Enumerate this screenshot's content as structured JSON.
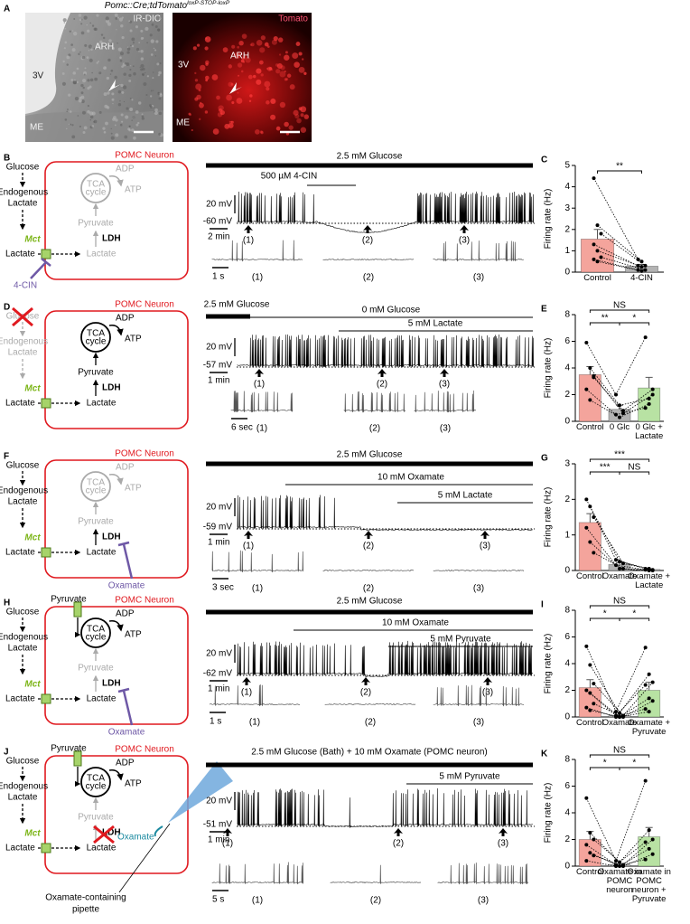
{
  "figure": {
    "panel_a": {
      "letter": "A",
      "genotype": "Pomc::Cre;tdTomato",
      "genotype_sup": "loxP-STOP-loxP",
      "left": {
        "channel": "IR-DIC",
        "regions": [
          "3V",
          "ARH",
          "ME"
        ]
      },
      "right": {
        "channel": "Tomato",
        "regions": [
          "3V",
          "ARH",
          "ME"
        ]
      }
    },
    "rows": [
      {
        "panel": "B",
        "diagram": {
          "neuron": "POMC Neuron",
          "glucose": "Glucose",
          "endogenous": "Endogenous",
          "lactate_mid": "Lactate",
          "lactate_out": "Lactate",
          "mct": "Mct",
          "tca": "TCA",
          "cycle": "cycle",
          "adp": "ADP",
          "atp": "ATP",
          "pyruvate": "Pyruvate",
          "ldh": "LDH",
          "lactate_in": "Lactate",
          "inhibitor": "4-CIN"
        },
        "trace": {
          "solutions": [
            "2.5 mM Glucose",
            "500 µM 4-CIN"
          ],
          "mv_scale": "20 mV",
          "rest": "-60 mV",
          "time_scale": "2 min",
          "markers": [
            "(1)",
            "(2)",
            "(3)"
          ],
          "inset_scale": "1 s"
        }
      },
      {
        "panel": "D",
        "diagram": {
          "neuron": "POMC Neuron",
          "glucose": "Glucose",
          "endogenous": "Endogenous",
          "lactate_mid": "Lactate",
          "lactate_out": "Lactate",
          "mct": "Mct",
          "tca": "TCA",
          "cycle": "cycle",
          "adp": "ADP",
          "atp": "ATP",
          "pyruvate": "Pyruvate",
          "ldh": "LDH",
          "lactate_in": "Lactate"
        },
        "trace": {
          "solutions": [
            "2.5 mM Glucose",
            "0 mM Glucose",
            "5 mM Lactate"
          ],
          "mv_scale": "20 mV",
          "rest": "-57 mV",
          "time_scale": "1 min",
          "markers": [
            "(1)",
            "(2)",
            "(3)"
          ],
          "inset_scale": "6 sec"
        }
      },
      {
        "panel": "F",
        "diagram": {
          "neuron": "POMC Neuron",
          "glucose": "Glucose",
          "endogenous": "Endogenous",
          "lactate_mid": "Lactate",
          "lactate_out": "Lactate",
          "mct": "Mct",
          "tca": "TCA",
          "cycle": "cycle",
          "adp": "ADP",
          "atp": "ATP",
          "pyruvate": "Pyruvate",
          "ldh": "LDH",
          "lactate_in": "Lactate",
          "inhibitor": "Oxamate"
        },
        "trace": {
          "solutions": [
            "2.5 mM Glucose",
            "10 mM Oxamate",
            "5 mM Lactate"
          ],
          "mv_scale": "20 mV",
          "rest": "-59 mV",
          "time_scale": "1 min",
          "markers": [
            "(1)",
            "(2)",
            "(3)"
          ],
          "inset_scale": "3 sec"
        }
      },
      {
        "panel": "H",
        "diagram": {
          "neuron": "POMC Neuron",
          "pyruvate_out": "Pyruvate",
          "glucose": "Glucose",
          "endogenous": "Endogenous",
          "lactate_mid": "Lactate",
          "lactate_out": "Lactate",
          "mct": "Mct",
          "tca": "TCA",
          "cycle": "cycle",
          "adp": "ADP",
          "atp": "ATP",
          "pyruvate": "Pyruvate",
          "ldh": "LDH",
          "lactate_in": "Lactate",
          "inhibitor": "Oxamate"
        },
        "trace": {
          "solutions": [
            "2.5 mM Glucose",
            "10 mM Oxamate",
            "5 mM Pyruvate"
          ],
          "mv_scale": "20 mV",
          "rest": "-62 mV",
          "time_scale": "1 min",
          "markers": [
            "(1)",
            "(2)",
            "(3)"
          ],
          "inset_scale": "1 s"
        }
      },
      {
        "panel": "J",
        "diagram": {
          "neuron": "POMC Neuron",
          "pyruvate_out": "Pyruvate",
          "glucose": "Glucose",
          "endogenous": "Endogenous",
          "lactate_mid": "Lactate",
          "lactate_out": "Lactate",
          "mct": "Mct",
          "tca": "TCA",
          "cycle": "cycle",
          "adp": "ADP",
          "atp": "ATP",
          "pyruvate": "Pyruvate",
          "ldh": "LDH",
          "lactate_in": "Lactate",
          "pipette_drug": "Oxamate",
          "pipette_label": [
            "Oxamate-containing",
            "pipette"
          ]
        },
        "trace": {
          "solutions": [
            "2.5 mM Glucose (Bath) + 10 mM Oxamate (POMC neuron)",
            "5 mM Pyruvate"
          ],
          "mv_scale": "20 mV",
          "rest": "-51 mV",
          "time_scale": "1 min",
          "markers": [
            "(1)",
            "(2)",
            "(3)"
          ],
          "inset_scale": "5 s"
        }
      }
    ]
  },
  "chart_data": [
    {
      "type": "bar",
      "panel": "C",
      "ylabel": "Firing rate (Hz)",
      "categories": [
        "Control",
        "4-CIN"
      ],
      "values": [
        1.55,
        0.28
      ],
      "errors": [
        0.45,
        0.08
      ],
      "colors": [
        "#f4a49c",
        "#b3b3b3"
      ],
      "points": [
        [
          4.4,
          2.2,
          1.8,
          1.3,
          1.0,
          0.7,
          0.6,
          0.5
        ],
        [
          0.6,
          0.5,
          0.3,
          0.3,
          0.25,
          0.1,
          0.1,
          0.05
        ]
      ],
      "significance": [
        "**"
      ],
      "ylim": [
        0,
        5
      ],
      "yticks": [
        0,
        1,
        2,
        3,
        4,
        5
      ]
    },
    {
      "type": "bar",
      "panel": "E",
      "ylabel": "Firing rate (Hz)",
      "categories": [
        "Control",
        "0 Glc",
        "0 Glc + Lactate"
      ],
      "values": [
        3.5,
        0.9,
        2.5
      ],
      "errors": [
        0.6,
        0.3,
        0.8
      ],
      "colors": [
        "#f4a49c",
        "#b3b3b3",
        "#b8e2a3"
      ],
      "points": [
        [
          5.9,
          4.0,
          3.3,
          2.4,
          1.6,
          3.4
        ],
        [
          2.0,
          1.2,
          0.8,
          0.5,
          0.3,
          0.6
        ],
        [
          6.3,
          1.7,
          2.4,
          1.0,
          1.3,
          2.0
        ]
      ],
      "significance": [
        "NS",
        "**",
        "*"
      ],
      "ylim": [
        0,
        8
      ],
      "yticks": [
        0,
        2,
        4,
        6,
        8
      ]
    },
    {
      "type": "bar",
      "panel": "G",
      "ylabel": "Firing rate (Hz)",
      "categories": [
        "Control",
        "Oxamate",
        "Oxamate + Lactate"
      ],
      "values": [
        1.35,
        0.17,
        0.03
      ],
      "errors": [
        0.25,
        0.05,
        0.01
      ],
      "colors": [
        "#f4a49c",
        "#b3b3b3",
        "#b3b3b3"
      ],
      "points": [
        [
          2.0,
          1.8,
          1.5,
          1.2,
          0.8,
          0.5
        ],
        [
          0.3,
          0.25,
          0.2,
          0.15,
          0.05,
          0.05
        ],
        [
          0.05,
          0.05,
          0.02,
          0.02,
          0,
          0
        ]
      ],
      "significance": [
        "***",
        "***",
        "NS"
      ],
      "ylim": [
        0,
        3
      ],
      "yticks": [
        0,
        1,
        2,
        3
      ]
    },
    {
      "type": "bar",
      "panel": "I",
      "ylabel": "Firing rate (Hz)",
      "categories": [
        "Control",
        "Oxamate",
        "Oxamate + Pyruvate"
      ],
      "values": [
        2.2,
        0.1,
        2.0
      ],
      "errors": [
        0.6,
        0.05,
        0.6
      ],
      "colors": [
        "#f4a49c",
        "#b3b3b3",
        "#b8e2a3"
      ],
      "points": [
        [
          5.3,
          3.9,
          2.5,
          2.0,
          1.8,
          1.0,
          0.7,
          0.5
        ],
        [
          0.4,
          0.3,
          0.1,
          0.1,
          0,
          0,
          0,
          0
        ],
        [
          5.2,
          3.2,
          2.6,
          2.4,
          1.4,
          1.2,
          0.6,
          0.4
        ]
      ],
      "significance": [
        "NS",
        "*",
        "*"
      ],
      "ylim": [
        0,
        8
      ],
      "yticks": [
        0,
        2,
        4,
        6,
        8
      ]
    },
    {
      "type": "bar",
      "panel": "K",
      "ylabel": "Firing rate (Hz)",
      "categories": [
        "Control",
        "Oxamate in POMC neuron",
        "Oxamate in POMC neuron + Pyruvate"
      ],
      "values": [
        2.0,
        0.1,
        2.2
      ],
      "errors": [
        0.6,
        0.05,
        0.7
      ],
      "colors": [
        "#f4a49c",
        "#b3b3b3",
        "#b8e2a3"
      ],
      "points": [
        [
          5.1,
          2.5,
          2.0,
          1.6,
          1.0,
          0.8,
          0.4
        ],
        [
          0.4,
          0.3,
          0.1,
          0.1,
          0,
          0,
          0
        ],
        [
          6.4,
          2.7,
          2.0,
          1.8,
          1.3,
          0.9,
          0.5
        ]
      ],
      "significance": [
        "NS",
        "*",
        "*"
      ],
      "ylim": [
        0,
        8
      ],
      "yticks": [
        0,
        2,
        4,
        6,
        8
      ]
    }
  ]
}
